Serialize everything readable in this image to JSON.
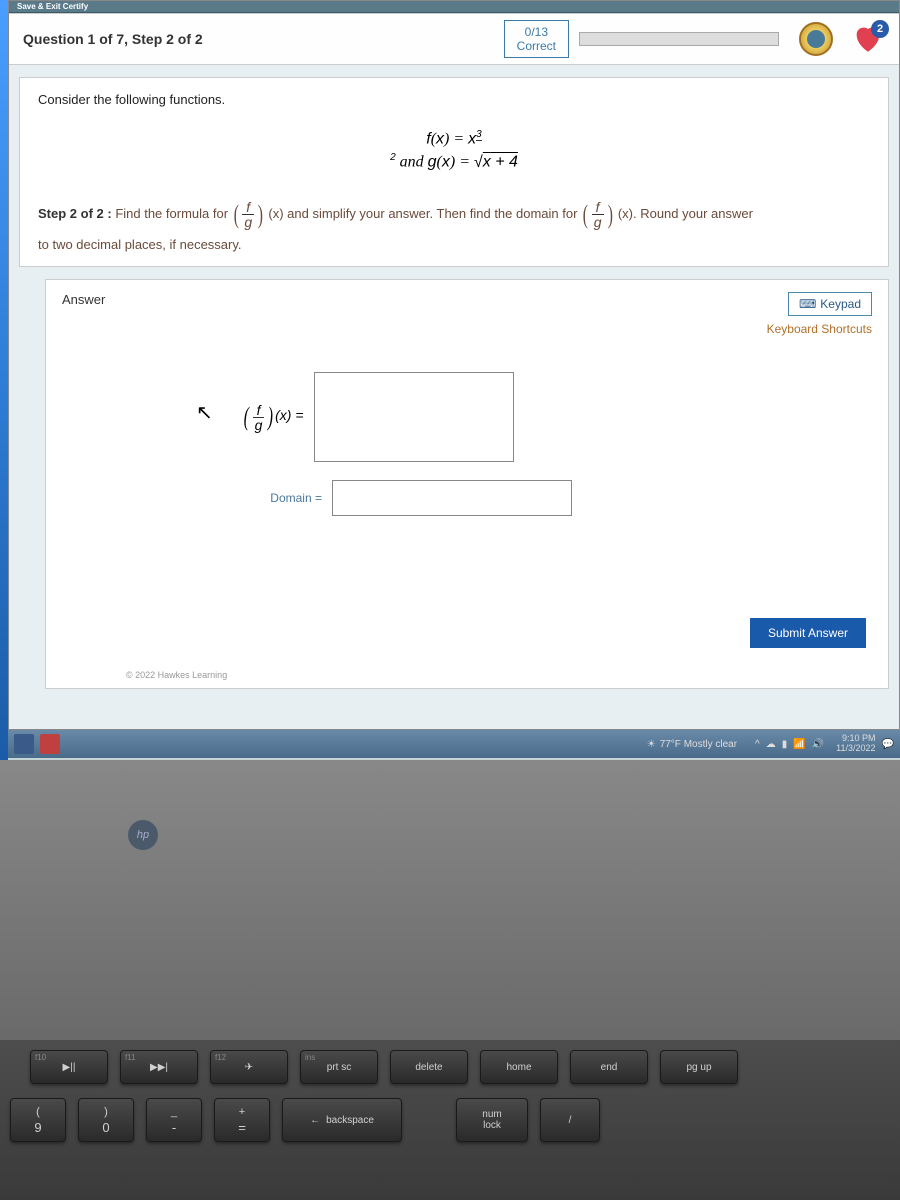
{
  "header": {
    "save_exit": "Save & Exit Certify",
    "question_title": "Question 1 of 7, Step 2 of 2",
    "score_num": "0/13",
    "score_label": "Correct",
    "heart_badge": "2"
  },
  "problem": {
    "instruction": "Consider the following functions.",
    "math_display": "f(x) = x^(3/2) and g(x) = √(x + 4)",
    "step_label": "Step 2 of 2 :",
    "step_text_1": " Find the formula for ",
    "step_text_2": "(x) and simplify your answer. Then find the domain for ",
    "step_text_3": "(x). Round your answer",
    "step_text_4": "to two decimal places, if necessary.",
    "frac_num": "f",
    "frac_den": "g"
  },
  "answer": {
    "title": "Answer",
    "keypad_label": "Keypad",
    "shortcuts_label": "Keyboard Shortcuts",
    "formula_label": "(x) =",
    "domain_label": "Domain =",
    "submit_label": "Submit Answer",
    "copyright": "© 2022 Hawkes Learning"
  },
  "taskbar": {
    "weather": "77°F Mostly clear",
    "time": "9:10 PM",
    "date": "11/3/2022"
  },
  "keyboard": {
    "r1": [
      {
        "sec": "f10",
        "main": "▶||"
      },
      {
        "sec": "f11",
        "main": "▶▶|"
      },
      {
        "sec": "f12",
        "main": "✈"
      },
      {
        "sec": "ins",
        "main": "prt sc"
      },
      {
        "sec": "",
        "main": "delete"
      },
      {
        "sec": "",
        "main": "home"
      },
      {
        "sec": "",
        "main": "end"
      },
      {
        "sec": "",
        "main": "pg up"
      }
    ],
    "r2_left": [
      {
        "top": "(",
        "bot": "9"
      },
      {
        "top": ")",
        "bot": "0"
      },
      {
        "top": "_",
        "bot": "-"
      },
      {
        "top": "+",
        "bot": "="
      }
    ],
    "backspace_arrow": "←",
    "backspace_label": "backspace",
    "numlock_top": "num",
    "numlock_bot": "lock",
    "slash": "/"
  }
}
